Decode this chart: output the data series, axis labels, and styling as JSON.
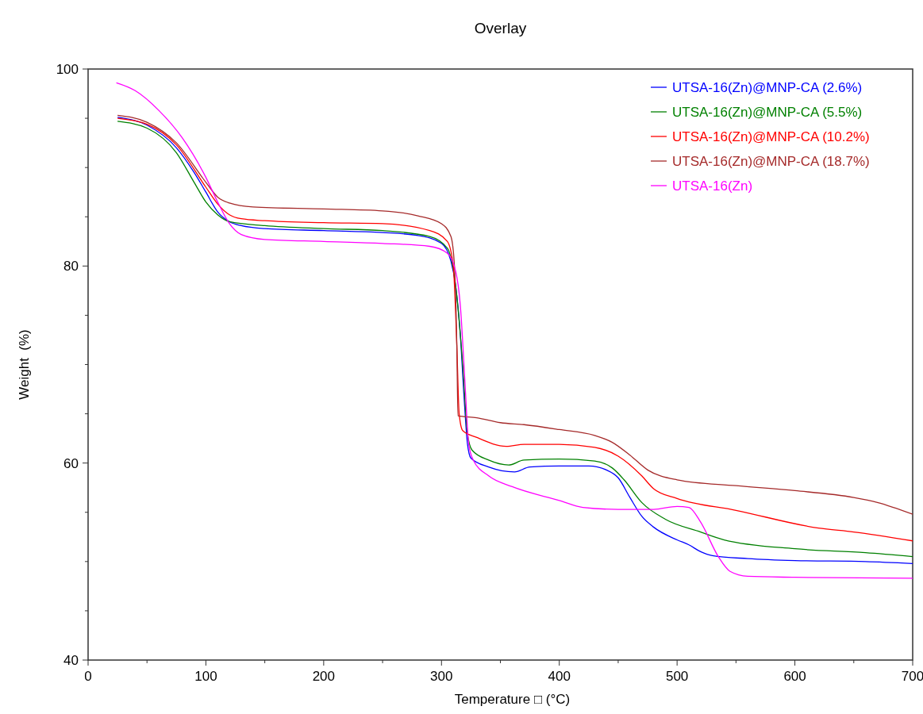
{
  "chart_data": {
    "type": "line",
    "title": "Overlay",
    "xlabel": "Temperature □ (°C)",
    "ylabel": "Weight  (%)",
    "xlim": [
      0,
      700
    ],
    "ylim": [
      40,
      100
    ],
    "xticks": [
      0,
      {
        "value": 50,
        "label": null
      },
      100,
      {
        "value": 150,
        "label": null
      },
      200,
      {
        "value": 250,
        "label": null
      },
      300,
      {
        "value": 350,
        "label": null
      },
      400,
      {
        "value": 450,
        "label": null
      },
      500,
      {
        "value": 550,
        "label": null
      },
      600,
      {
        "value": 650,
        "label": null
      },
      700
    ],
    "yticks": [
      40,
      {
        "value": 45,
        "label": null
      },
      {
        "value": 50,
        "label": null
      },
      {
        "value": 55,
        "label": null
      },
      60,
      {
        "value": 65,
        "label": null
      },
      {
        "value": 70,
        "label": null
      },
      {
        "value": 75,
        "label": null
      },
      80,
      {
        "value": 85,
        "label": null
      },
      {
        "value": 90,
        "label": null
      },
      {
        "value": 95,
        "label": null
      },
      100
    ],
    "legend": "top right",
    "grid": false,
    "line_style": "solid",
    "marker": "none",
    "series": [
      {
        "name": "UTSA-16(Zn)@MNP-CA (2.6%)",
        "color": "#0000ff",
        "x": [
          25,
          50,
          75,
          90,
          100,
          110,
          120,
          130,
          150,
          200,
          250,
          280,
          300,
          308,
          312,
          316,
          319,
          322,
          325,
          340,
          362,
          375,
          400,
          425,
          440,
          450,
          460,
          470,
          480,
          500,
          510,
          520,
          530,
          560,
          600,
          660,
          700
        ],
        "values": [
          95.1,
          94.3,
          92,
          89.5,
          87.5,
          85.5,
          84.5,
          84.1,
          83.8,
          83.6,
          83.4,
          83.1,
          82.3,
          80.5,
          78,
          73,
          67,
          62,
          60.5,
          59.6,
          59.1,
          59.6,
          59.7,
          59.7,
          59.3,
          58.5,
          56.5,
          54.6,
          53.5,
          52.2,
          51.7,
          51.0,
          50.6,
          50.3,
          50.1,
          50.0,
          49.8
        ]
      },
      {
        "name": "UTSA-16(Zn)@MNP-CA (5.5%)",
        "color": "#008000",
        "x": [
          25,
          50,
          75,
          90,
          100,
          110,
          120,
          150,
          200,
          250,
          290,
          305,
          312,
          318,
          322,
          326,
          340,
          357,
          370,
          400,
          430,
          445,
          455,
          470,
          490,
          520,
          540,
          600,
          660,
          700
        ],
        "values": [
          94.7,
          94.0,
          91.5,
          88.5,
          86.5,
          85.2,
          84.5,
          84.1,
          83.8,
          83.6,
          83.0,
          81.8,
          78,
          70,
          63,
          61.3,
          60.3,
          59.8,
          60.3,
          60.4,
          60.2,
          59.5,
          58.3,
          56.0,
          54.3,
          53.0,
          52.2,
          51.3,
          50.9,
          50.5
        ]
      },
      {
        "name": "UTSA-16(Zn)@MNP-CA (10.2%)",
        "color": "#ff0000",
        "x": [
          25,
          50,
          75,
          100,
          110,
          120,
          130,
          150,
          200,
          250,
          290,
          305,
          310,
          313,
          315,
          318,
          330,
          355,
          370,
          400,
          430,
          450,
          470,
          480,
          500,
          550,
          620,
          650,
          700
        ],
        "values": [
          95.0,
          94.4,
          92.3,
          88,
          86.3,
          85.2,
          84.8,
          84.6,
          84.4,
          84.3,
          83.6,
          82.5,
          80,
          72,
          65,
          63.3,
          62.6,
          61.7,
          61.9,
          61.9,
          61.6,
          60.7,
          58.7,
          57.4,
          56.4,
          55.2,
          53.4,
          53.0,
          52.1
        ]
      },
      {
        "name": "UTSA-16(Zn)@MNP-CA (18.7%)",
        "color": "#a52a2a",
        "x": [
          25,
          50,
          75,
          100,
          110,
          120,
          140,
          200,
          250,
          280,
          300,
          308,
          311,
          313,
          314,
          330,
          350,
          370,
          400,
          430,
          445,
          460,
          475,
          500,
          550,
          600,
          650,
          670,
          700
        ],
        "values": [
          95.3,
          94.6,
          92.5,
          88.5,
          87,
          86.4,
          86.0,
          85.8,
          85.6,
          85.1,
          84.3,
          83,
          80,
          72,
          64.8,
          64.6,
          64.1,
          63.9,
          63.4,
          62.8,
          62.1,
          60.8,
          59.3,
          58.3,
          57.7,
          57.2,
          56.5,
          56.0,
          54.8
        ]
      },
      {
        "name": "UTSA-16(Zn)",
        "color": "#ff00ff",
        "x": [
          24,
          40,
          60,
          80,
          100,
          110,
          120,
          130,
          150,
          200,
          250,
          290,
          305,
          312,
          316,
          320,
          323,
          327,
          340,
          360,
          400,
          420,
          450,
          480,
          500,
          510,
          520,
          535,
          545,
          560,
          600,
          700
        ],
        "values": [
          98.6,
          97.8,
          95.8,
          93,
          89,
          86.5,
          84.3,
          83.2,
          82.7,
          82.5,
          82.3,
          82.0,
          81.3,
          79.5,
          76,
          68,
          62,
          60.3,
          58.7,
          57.6,
          56.2,
          55.5,
          55.3,
          55.3,
          55.6,
          55.5,
          54,
          50.5,
          49,
          48.5,
          48.4,
          48.3
        ]
      }
    ]
  }
}
